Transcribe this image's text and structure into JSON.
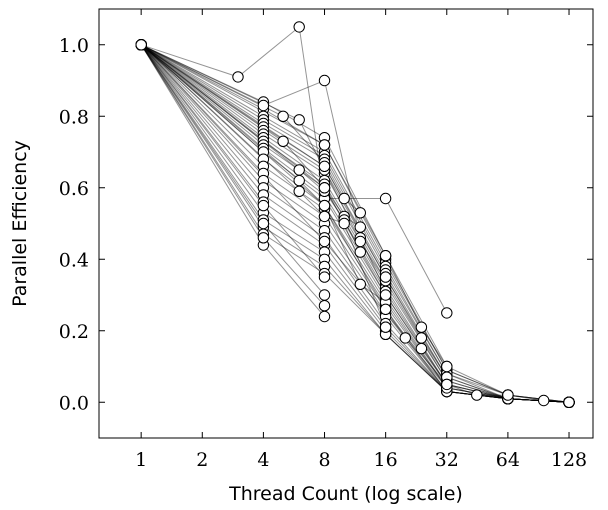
{
  "chart_data": {
    "type": "line",
    "title": "",
    "xlabel": "Thread Count (log scale)",
    "ylabel": "Parallel Efficiency",
    "x_scale": "log2",
    "xlim": [
      0.62,
      168
    ],
    "ylim": [
      -0.1,
      1.1
    ],
    "x_ticks": [
      1,
      2,
      4,
      8,
      16,
      32,
      64,
      128
    ],
    "x_tick_labels": [
      "1",
      "2",
      "4",
      "8",
      "16",
      "32",
      "64",
      "128"
    ],
    "y_ticks": [
      0.0,
      0.2,
      0.4,
      0.6,
      0.8,
      1.0
    ],
    "y_tick_labels": [
      "0.0",
      "0.2",
      "0.4",
      "0.6",
      "0.8",
      "1.0"
    ],
    "grid": false,
    "legend": "none",
    "series": [
      {
        "x": [
          1,
          4,
          8,
          16,
          32,
          64,
          128
        ],
        "y": [
          1.0,
          0.84,
          0.74,
          0.41,
          0.1,
          0.02,
          0.0
        ]
      },
      {
        "x": [
          1,
          4,
          8,
          16,
          32,
          64,
          128
        ],
        "y": [
          1.0,
          0.82,
          0.72,
          0.4,
          0.09,
          0.02,
          0.0
        ]
      },
      {
        "x": [
          1,
          4,
          8,
          16,
          32,
          64,
          128
        ],
        "y": [
          1.0,
          0.8,
          0.7,
          0.39,
          0.09,
          0.02,
          0.0
        ]
      },
      {
        "x": [
          1,
          4,
          8,
          16,
          32,
          64,
          128
        ],
        "y": [
          1.0,
          0.79,
          0.69,
          0.38,
          0.08,
          0.02,
          0.0
        ]
      },
      {
        "x": [
          1,
          4,
          8,
          16,
          32,
          64,
          128
        ],
        "y": [
          1.0,
          0.78,
          0.68,
          0.37,
          0.08,
          0.01,
          0.0
        ]
      },
      {
        "x": [
          1,
          4,
          8,
          16,
          32,
          64,
          128
        ],
        "y": [
          1.0,
          0.77,
          0.66,
          0.36,
          0.07,
          0.01,
          0.0
        ]
      },
      {
        "x": [
          1,
          4,
          8,
          16,
          32,
          64,
          128
        ],
        "y": [
          1.0,
          0.76,
          0.65,
          0.35,
          0.07,
          0.01,
          0.0
        ]
      },
      {
        "x": [
          1,
          4,
          8,
          16,
          32,
          64,
          128
        ],
        "y": [
          1.0,
          0.75,
          0.64,
          0.34,
          0.06,
          0.01,
          0.0
        ]
      },
      {
        "x": [
          1,
          4,
          8,
          16,
          32,
          64,
          128
        ],
        "y": [
          1.0,
          0.74,
          0.62,
          0.33,
          0.06,
          0.01,
          0.0
        ]
      },
      {
        "x": [
          1,
          4,
          8,
          16,
          32,
          64,
          128
        ],
        "y": [
          1.0,
          0.73,
          0.61,
          0.32,
          0.05,
          0.01,
          0.0
        ]
      },
      {
        "x": [
          1,
          4,
          8,
          16,
          32,
          64,
          128
        ],
        "y": [
          1.0,
          0.72,
          0.6,
          0.31,
          0.05,
          0.01,
          0.0
        ]
      },
      {
        "x": [
          1,
          4,
          8,
          16,
          32,
          64,
          128
        ],
        "y": [
          1.0,
          0.71,
          0.58,
          0.3,
          0.05,
          0.01,
          0.0
        ]
      },
      {
        "x": [
          1,
          4,
          8,
          16,
          32,
          64,
          128
        ],
        "y": [
          1.0,
          0.7,
          0.57,
          0.29,
          0.04,
          0.01,
          0.0
        ]
      },
      {
        "x": [
          1,
          4,
          8,
          16,
          32,
          64,
          128
        ],
        "y": [
          1.0,
          0.68,
          0.55,
          0.28,
          0.04,
          0.01,
          0.0
        ]
      },
      {
        "x": [
          1,
          4,
          8,
          16,
          32,
          64,
          128
        ],
        "y": [
          1.0,
          0.66,
          0.54,
          0.27,
          0.04,
          0.01,
          0.0
        ]
      },
      {
        "x": [
          1,
          4,
          8,
          16,
          32,
          64,
          128
        ],
        "y": [
          1.0,
          0.64,
          0.52,
          0.26,
          0.03,
          0.01,
          0.0
        ]
      },
      {
        "x": [
          1,
          4,
          8,
          16,
          32,
          64,
          128
        ],
        "y": [
          1.0,
          0.62,
          0.5,
          0.25,
          0.03,
          0.01,
          0.0
        ]
      },
      {
        "x": [
          1,
          4,
          8,
          16,
          32,
          64,
          128
        ],
        "y": [
          1.0,
          0.6,
          0.48,
          0.24,
          0.03,
          0.01,
          0.0
        ]
      },
      {
        "x": [
          1,
          4,
          8,
          16,
          32,
          64,
          128
        ],
        "y": [
          1.0,
          0.58,
          0.46,
          0.22,
          0.03,
          0.01,
          0.0
        ]
      },
      {
        "x": [
          1,
          4,
          8,
          16,
          32,
          64,
          128
        ],
        "y": [
          1.0,
          0.56,
          0.44,
          0.21,
          0.03,
          0.01,
          0.0
        ]
      },
      {
        "x": [
          1,
          4,
          8,
          16,
          32,
          64,
          128
        ],
        "y": [
          1.0,
          0.53,
          0.42,
          0.2,
          0.03,
          0.01,
          0.0
        ]
      },
      {
        "x": [
          1,
          4,
          8,
          16,
          32,
          64,
          128
        ],
        "y": [
          1.0,
          0.51,
          0.4,
          0.19,
          0.03,
          0.01,
          0.0
        ]
      },
      {
        "x": [
          1,
          4,
          8,
          16,
          32,
          64,
          128
        ],
        "y": [
          1.0,
          0.49,
          0.38,
          0.19,
          0.03,
          0.01,
          0.0
        ]
      },
      {
        "x": [
          1,
          4,
          8,
          16,
          32,
          64,
          128
        ],
        "y": [
          1.0,
          0.47,
          0.36,
          0.19,
          0.03,
          0.01,
          0.0
        ]
      },
      {
        "x": [
          1,
          4,
          8
        ],
        "y": [
          1.0,
          0.44,
          0.24
        ]
      },
      {
        "x": [
          1,
          4,
          8
        ],
        "y": [
          1.0,
          0.46,
          0.27
        ]
      },
      {
        "x": [
          1,
          4,
          8
        ],
        "y": [
          1.0,
          0.5,
          0.3
        ]
      },
      {
        "x": [
          1,
          4,
          8
        ],
        "y": [
          1.0,
          0.55,
          0.35
        ]
      },
      {
        "x": [
          1,
          3,
          6,
          8,
          16,
          32
        ],
        "y": [
          1.0,
          0.91,
          1.05,
          0.57,
          0.57,
          0.25
        ]
      },
      {
        "x": [
          1,
          4,
          8,
          12,
          16
        ],
        "y": [
          1.0,
          0.83,
          0.9,
          0.46,
          0.31
        ]
      },
      {
        "x": [
          1,
          5,
          8,
          10,
          12
        ],
        "y": [
          1.0,
          0.8,
          0.67,
          0.57,
          0.53
        ]
      },
      {
        "x": [
          1,
          6,
          8,
          12,
          16
        ],
        "y": [
          1.0,
          0.79,
          0.65,
          0.45,
          0.34
        ]
      },
      {
        "x": [
          1,
          5,
          8,
          10,
          12
        ],
        "y": [
          1.0,
          0.73,
          0.6,
          0.52,
          0.49
        ]
      },
      {
        "x": [
          1,
          6,
          8,
          10,
          12
        ],
        "y": [
          1.0,
          0.65,
          0.59,
          0.51,
          0.42
        ]
      },
      {
        "x": [
          1,
          6,
          8,
          12,
          16
        ],
        "y": [
          1.0,
          0.62,
          0.55,
          0.33,
          0.28
        ]
      },
      {
        "x": [
          1,
          6,
          8,
          10,
          16
        ],
        "y": [
          1.0,
          0.59,
          0.52,
          0.5,
          0.21
        ]
      },
      {
        "x": [
          1,
          8,
          16,
          24,
          32
        ],
        "y": [
          1.0,
          0.72,
          0.41,
          0.21,
          0.1
        ]
      },
      {
        "x": [
          1,
          8,
          16,
          24,
          32
        ],
        "y": [
          1.0,
          0.66,
          0.35,
          0.18,
          0.07
        ]
      },
      {
        "x": [
          1,
          8,
          16,
          24,
          32
        ],
        "y": [
          1.0,
          0.6,
          0.3,
          0.15,
          0.05
        ]
      },
      {
        "x": [
          1,
          8,
          16,
          20,
          32
        ],
        "y": [
          1.0,
          0.55,
          0.26,
          0.18,
          0.04
        ]
      },
      {
        "x": [
          1,
          8,
          32,
          45,
          64,
          96,
          128
        ],
        "y": [
          1.0,
          0.45,
          0.05,
          0.02,
          0.02,
          0.005,
          0.0
        ]
      }
    ]
  }
}
